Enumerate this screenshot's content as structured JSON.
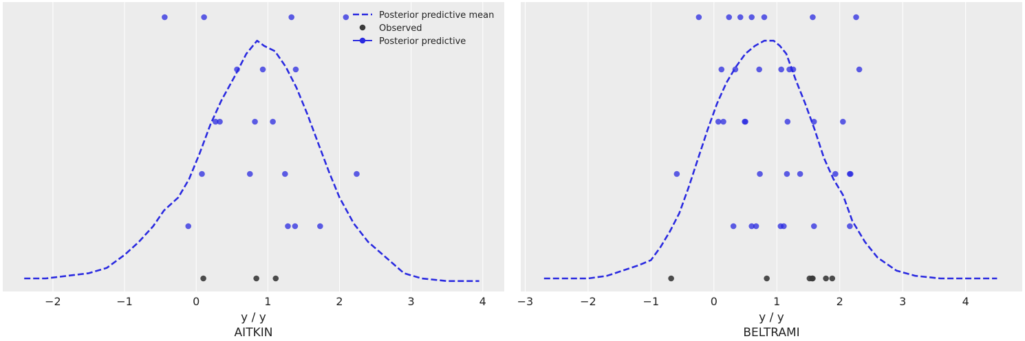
{
  "figure": {
    "background": "#ffffff",
    "panel_background": "#ececec",
    "grid_color": "#ffffff"
  },
  "legend": {
    "placement": "top-right",
    "panel": 0,
    "entries": [
      {
        "label": "Posterior predictive mean",
        "style": "dashed-line",
        "color": "#2a2ae0"
      },
      {
        "label": "Observed",
        "style": "marker",
        "color": "#3a3a3a"
      },
      {
        "label": "Posterior predictive",
        "style": "line-marker",
        "color": "#2a2ae0"
      }
    ]
  },
  "chart_data": [
    {
      "type": "line",
      "title": "AITKIN",
      "xlabel": "y / y",
      "xlim": [
        -2.7,
        4.3
      ],
      "ylim": [
        0,
        1.04
      ],
      "grid": "vertical",
      "xticks": [
        -2,
        -1,
        0,
        1,
        2,
        3,
        4
      ],
      "xtick_labels": [
        "−2",
        "−1",
        "0",
        "1",
        "2",
        "3",
        "4"
      ],
      "series": [
        {
          "name": "Posterior predictive mean",
          "kind": "line",
          "color": "#2a2ae0",
          "points": [
            [
              -2.4,
              0.0
            ],
            [
              -2.1,
              0.0
            ],
            [
              -1.8,
              0.01
            ],
            [
              -1.5,
              0.02
            ],
            [
              -1.25,
              0.04
            ],
            [
              -1.0,
              0.09
            ],
            [
              -0.8,
              0.14
            ],
            [
              -0.6,
              0.2
            ],
            [
              -0.45,
              0.26
            ],
            [
              -0.25,
              0.31
            ],
            [
              -0.1,
              0.38
            ],
            [
              0.05,
              0.48
            ],
            [
              0.2,
              0.59
            ],
            [
              0.35,
              0.68
            ],
            [
              0.55,
              0.78
            ],
            [
              0.7,
              0.86
            ],
            [
              0.85,
              0.91
            ],
            [
              0.95,
              0.89
            ],
            [
              1.1,
              0.87
            ],
            [
              1.25,
              0.81
            ],
            [
              1.4,
              0.73
            ],
            [
              1.55,
              0.63
            ],
            [
              1.7,
              0.52
            ],
            [
              1.85,
              0.41
            ],
            [
              2.0,
              0.31
            ],
            [
              2.2,
              0.21
            ],
            [
              2.4,
              0.14
            ],
            [
              2.65,
              0.08
            ],
            [
              2.9,
              0.02
            ],
            [
              3.15,
              0.0
            ],
            [
              3.5,
              -0.01
            ],
            [
              3.95,
              -0.01
            ]
          ]
        },
        {
          "name": "Observed",
          "kind": "scatter",
          "color": "#3a3a3a",
          "points": [
            [
              0.1,
              0.0
            ],
            [
              0.84,
              0.0
            ],
            [
              1.11,
              0.0
            ]
          ]
        },
        {
          "name": "Posterior predictive",
          "kind": "scatter",
          "color": "#2a2ae0",
          "points": [
            [
              -0.44,
              1.0
            ],
            [
              0.11,
              1.0
            ],
            [
              1.33,
              1.0
            ],
            [
              2.09,
              1.0
            ],
            [
              0.57,
              0.8
            ],
            [
              0.93,
              0.8
            ],
            [
              1.39,
              0.8
            ],
            [
              0.27,
              0.6
            ],
            [
              0.33,
              0.6
            ],
            [
              0.82,
              0.6
            ],
            [
              1.07,
              0.6
            ],
            [
              0.08,
              0.4
            ],
            [
              0.75,
              0.4
            ],
            [
              1.24,
              0.4
            ],
            [
              2.24,
              0.4
            ],
            [
              -0.11,
              0.2
            ],
            [
              1.28,
              0.2
            ],
            [
              1.38,
              0.2
            ],
            [
              1.73,
              0.2
            ]
          ]
        }
      ]
    },
    {
      "type": "line",
      "title": "BELTRAMI",
      "xlabel": "y / y",
      "xlim": [
        -3.07,
        4.9
      ],
      "ylim": [
        0,
        1.04
      ],
      "grid": "vertical",
      "xticks": [
        -3,
        -2,
        -1,
        0,
        1,
        2,
        3,
        4
      ],
      "xtick_labels": [
        "−3",
        "−2",
        "−1",
        "0",
        "1",
        "2",
        "3",
        "4"
      ],
      "series": [
        {
          "name": "Posterior predictive mean",
          "kind": "line",
          "color": "#2a2ae0",
          "points": [
            [
              -2.7,
              0.0
            ],
            [
              -2.4,
              0.0
            ],
            [
              -2.0,
              0.0
            ],
            [
              -1.7,
              0.01
            ],
            [
              -1.45,
              0.03
            ],
            [
              -1.2,
              0.05
            ],
            [
              -1.0,
              0.07
            ],
            [
              -0.85,
              0.12
            ],
            [
              -0.7,
              0.18
            ],
            [
              -0.55,
              0.25
            ],
            [
              -0.4,
              0.35
            ],
            [
              -0.25,
              0.46
            ],
            [
              -0.1,
              0.57
            ],
            [
              0.05,
              0.67
            ],
            [
              0.2,
              0.75
            ],
            [
              0.35,
              0.81
            ],
            [
              0.5,
              0.86
            ],
            [
              0.65,
              0.89
            ],
            [
              0.8,
              0.91
            ],
            [
              0.95,
              0.91
            ],
            [
              1.05,
              0.89
            ],
            [
              1.15,
              0.86
            ],
            [
              1.3,
              0.76
            ],
            [
              1.45,
              0.67
            ],
            [
              1.6,
              0.57
            ],
            [
              1.75,
              0.46
            ],
            [
              1.9,
              0.38
            ],
            [
              2.05,
              0.32
            ],
            [
              2.2,
              0.22
            ],
            [
              2.4,
              0.14
            ],
            [
              2.6,
              0.08
            ],
            [
              2.9,
              0.03
            ],
            [
              3.2,
              0.01
            ],
            [
              3.6,
              0.0
            ],
            [
              4.0,
              0.0
            ],
            [
              4.5,
              0.0
            ]
          ]
        },
        {
          "name": "Observed",
          "kind": "scatter",
          "color": "#3a3a3a",
          "points": [
            [
              -0.68,
              0.0
            ],
            [
              0.84,
              0.0
            ],
            [
              1.52,
              0.0
            ],
            [
              1.56,
              0.0
            ],
            [
              1.57,
              0.0
            ],
            [
              1.78,
              0.0
            ],
            [
              1.88,
              0.0
            ]
          ]
        },
        {
          "name": "Posterior predictive",
          "kind": "scatter",
          "color": "#2a2ae0",
          "points": [
            [
              -0.24,
              1.0
            ],
            [
              0.24,
              1.0
            ],
            [
              0.42,
              1.0
            ],
            [
              0.6,
              1.0
            ],
            [
              0.8,
              1.0
            ],
            [
              1.57,
              1.0
            ],
            [
              2.26,
              1.0
            ],
            [
              0.12,
              0.8
            ],
            [
              0.34,
              0.8
            ],
            [
              0.72,
              0.8
            ],
            [
              1.07,
              0.8
            ],
            [
              1.2,
              0.8
            ],
            [
              1.26,
              0.8
            ],
            [
              2.31,
              0.8
            ],
            [
              0.07,
              0.6
            ],
            [
              0.15,
              0.6
            ],
            [
              0.49,
              0.6
            ],
            [
              0.5,
              0.6
            ],
            [
              1.17,
              0.6
            ],
            [
              1.59,
              0.6
            ],
            [
              2.05,
              0.6
            ],
            [
              -0.59,
              0.4
            ],
            [
              0.73,
              0.4
            ],
            [
              1.16,
              0.4
            ],
            [
              1.37,
              0.4
            ],
            [
              1.93,
              0.4
            ],
            [
              2.16,
              0.4
            ],
            [
              2.17,
              0.4
            ],
            [
              0.31,
              0.2
            ],
            [
              0.6,
              0.2
            ],
            [
              0.67,
              0.2
            ],
            [
              1.06,
              0.2
            ],
            [
              1.11,
              0.2
            ],
            [
              1.59,
              0.2
            ],
            [
              2.16,
              0.2
            ]
          ]
        }
      ]
    }
  ]
}
